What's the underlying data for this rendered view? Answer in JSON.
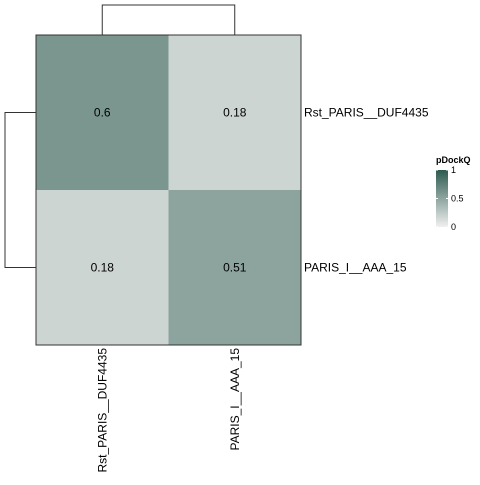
{
  "chart_data": {
    "type": "heatmap",
    "rows": [
      "Rst_PARIS__DUF4435",
      "PARIS_I__AAA_15"
    ],
    "columns": [
      "Rst_PARIS__DUF4435",
      "PARIS_I__AAA_15"
    ],
    "values": [
      [
        0.6,
        0.18
      ],
      [
        0.18,
        0.51
      ]
    ],
    "cell_labels": [
      [
        "0.6",
        "0.18"
      ],
      [
        "0.18",
        "0.51"
      ]
    ],
    "legend": {
      "title": "pDockQ",
      "ticks": [
        "0",
        "0.5",
        "1"
      ],
      "min": 0,
      "max": 1
    },
    "colors": {
      "low": "#f0f0f0",
      "high": "#2d5a4f",
      "border": "#333333",
      "dendrogram": "#333333"
    },
    "dendrograms": {
      "rows": true,
      "columns": true
    }
  }
}
